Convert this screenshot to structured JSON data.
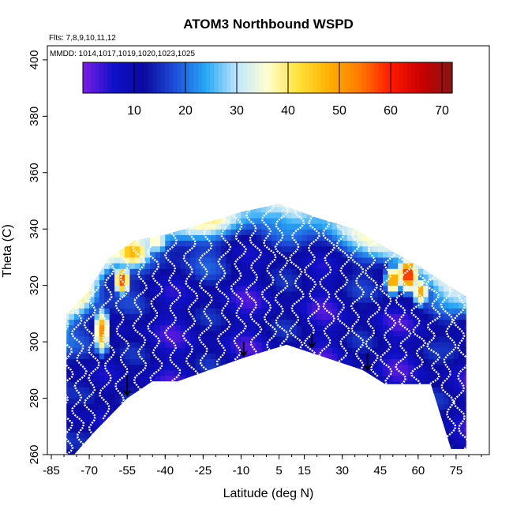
{
  "chart_data": {
    "type": "heatmap",
    "title": "ATOM3 Northbound WSPD",
    "flights_label": "Flts: 7,8,9,10,11,12",
    "dates_label": "MMDD: 1014,1017,1019,1020,1023,1025",
    "xlabel": "Latitude (deg N)",
    "ylabel": "Theta (C)",
    "xlim": [
      -85,
      85
    ],
    "ylim": [
      260,
      405
    ],
    "xticks": [
      -85,
      -70,
      -55,
      -40,
      -25,
      -10,
      5,
      15,
      30,
      45,
      60,
      75
    ],
    "xtick_labels": [
      "-85",
      "-70",
      "-55",
      "-40",
      "-25",
      "-10",
      "5",
      "15",
      "30",
      "45",
      "60",
      "75"
    ],
    "yticks": [
      260,
      280,
      300,
      320,
      340,
      360,
      380,
      400
    ],
    "ytick_labels": [
      "260",
      "280",
      "300",
      "320",
      "340",
      "360",
      "380",
      "400"
    ],
    "colorbar": {
      "range": [
        0,
        72
      ],
      "ticks": [
        10,
        20,
        30,
        40,
        50,
        60,
        70
      ],
      "tick_labels": [
        "10",
        "20",
        "30",
        "40",
        "50",
        "60",
        "70"
      ],
      "colors": [
        "#7a1fe6",
        "#1010c8",
        "#0a0aa0",
        "#1e4fd8",
        "#27a8f5",
        "#bfe6ff",
        "#ffffd0",
        "#ffe23a",
        "#ffb000",
        "#ff7a00",
        "#ff1a00",
        "#c80000",
        "#8a1414"
      ]
    },
    "domain_bottom_theta": [
      {
        "lat": -76,
        "theta": 260
      },
      {
        "lat": -68,
        "theta": 268
      },
      {
        "lat": -55,
        "theta": 280
      },
      {
        "lat": -45,
        "theta": 286
      },
      {
        "lat": -35,
        "theta": 286
      },
      {
        "lat": -10,
        "theta": 294
      },
      {
        "lat": 8,
        "theta": 299
      },
      {
        "lat": 18,
        "theta": 296
      },
      {
        "lat": 38,
        "theta": 290
      },
      {
        "lat": 47,
        "theta": 285
      },
      {
        "lat": 55,
        "theta": 285
      },
      {
        "lat": 65,
        "theta": 285
      },
      {
        "lat": 73,
        "theta": 262
      }
    ],
    "domain_top_theta": [
      {
        "lat": -79,
        "theta": 310
      },
      {
        "lat": -72,
        "theta": 316
      },
      {
        "lat": -62,
        "theta": 330
      },
      {
        "lat": -52,
        "theta": 336
      },
      {
        "lat": -40,
        "theta": 338
      },
      {
        "lat": -25,
        "theta": 342
      },
      {
        "lat": -10,
        "theta": 346
      },
      {
        "lat": 5,
        "theta": 349
      },
      {
        "lat": 20,
        "theta": 344
      },
      {
        "lat": 35,
        "theta": 340
      },
      {
        "lat": 50,
        "theta": 332
      },
      {
        "lat": 62,
        "theta": 326
      },
      {
        "lat": 72,
        "theta": 320
      },
      {
        "lat": 79,
        "theta": 316
      }
    ],
    "wind_features": [
      {
        "lat": -65,
        "theta": 304,
        "wspd": 52,
        "lat_halfwidth": 3,
        "theta_halfwidth": 8
      },
      {
        "lat": -57,
        "theta": 322,
        "wspd": 58,
        "lat_halfwidth": 3,
        "theta_halfwidth": 5
      },
      {
        "lat": -53,
        "theta": 332,
        "wspd": 48,
        "lat_halfwidth": 8,
        "theta_halfwidth": 6
      },
      {
        "lat": -44,
        "theta": 336,
        "wspd": 38,
        "lat_halfwidth": 6,
        "theta_halfwidth": 5
      },
      {
        "lat": 50,
        "theta": 322,
        "wspd": 54,
        "lat_halfwidth": 3,
        "theta_halfwidth": 5
      },
      {
        "lat": 56,
        "theta": 324,
        "wspd": 62,
        "lat_halfwidth": 4,
        "theta_halfwidth": 6
      },
      {
        "lat": 61,
        "theta": 318,
        "wspd": 50,
        "lat_halfwidth": 3,
        "theta_halfwidth": 5
      }
    ],
    "profile_latitudes": [
      -79,
      -74,
      -69,
      -63,
      -57,
      -50,
      -44,
      -37,
      -30,
      -24,
      -17,
      -11,
      -5,
      1,
      6,
      12,
      18,
      24,
      30,
      36,
      42,
      48,
      54,
      60,
      66,
      72,
      77
    ],
    "arrows": [
      {
        "lat": -55,
        "theta_start": 288,
        "theta_end": 281
      },
      {
        "lat": -9,
        "theta_start": 300,
        "theta_end": 295
      },
      {
        "lat": 18,
        "theta_start": 303,
        "theta_end": 298
      },
      {
        "lat": 40,
        "theta_start": 296,
        "theta_end": 290
      }
    ]
  }
}
